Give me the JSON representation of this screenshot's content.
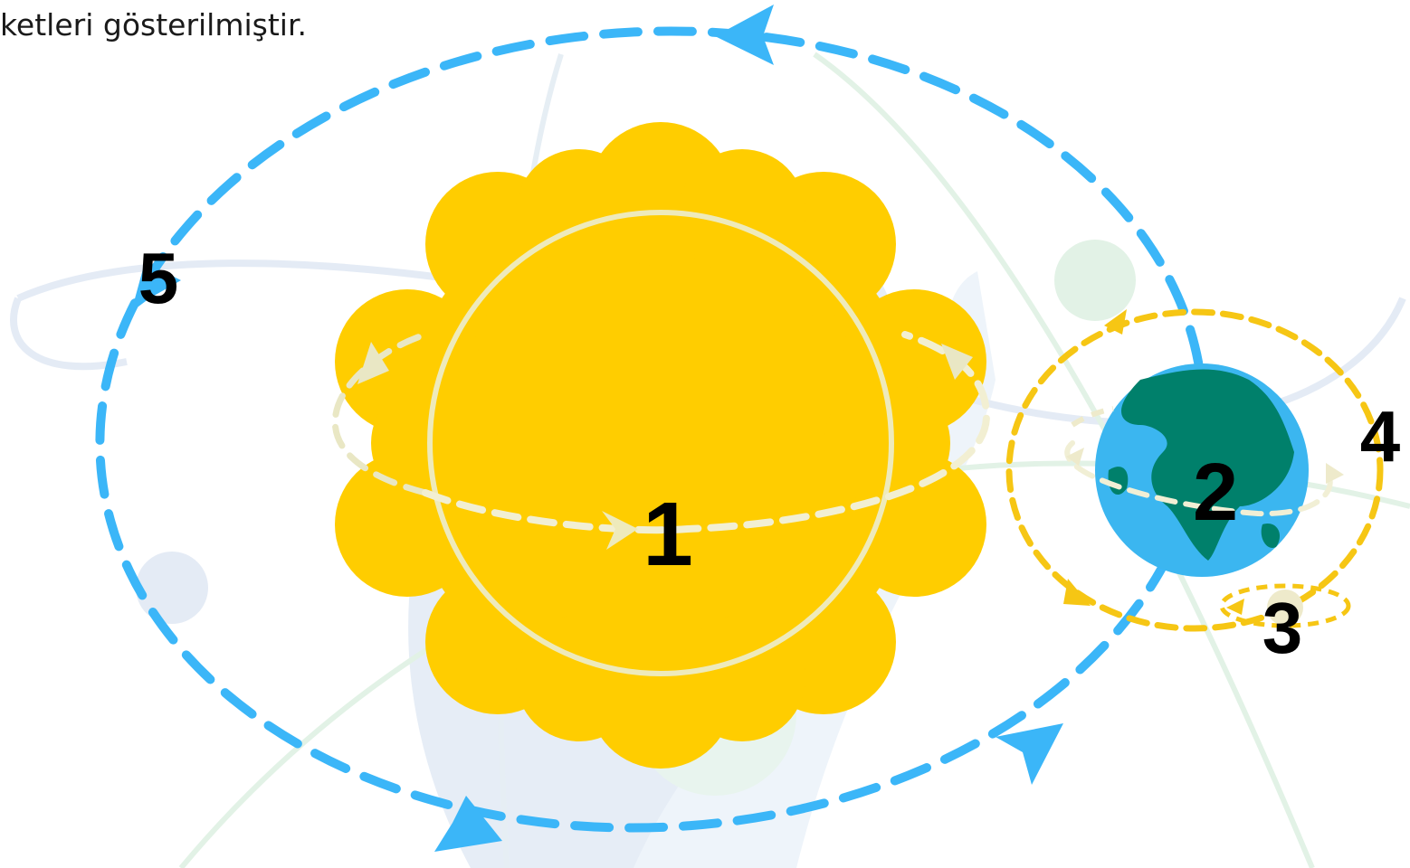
{
  "caption": "ketleri gösterilmiştir.",
  "labels": {
    "sun": "1",
    "earth": "2",
    "moon": "3",
    "moon_orbit": "4",
    "earth_orbit": "5"
  },
  "colors": {
    "sun": "#FFCD00",
    "sun_ring": "#EEEABB",
    "earth_ocean": "#3BB6F0",
    "earth_land": "#00806B",
    "blue_orbit": "#3BB6F8",
    "yellow_orbit": "#F6C614",
    "pale_orbit": "#E9E7C4",
    "watermark_blue": "#E4EBF5",
    "watermark_green": "#E2F2E6"
  },
  "icons": [
    "sun-icon",
    "earth-icon",
    "moon-icon",
    "arrowhead-icon"
  ]
}
